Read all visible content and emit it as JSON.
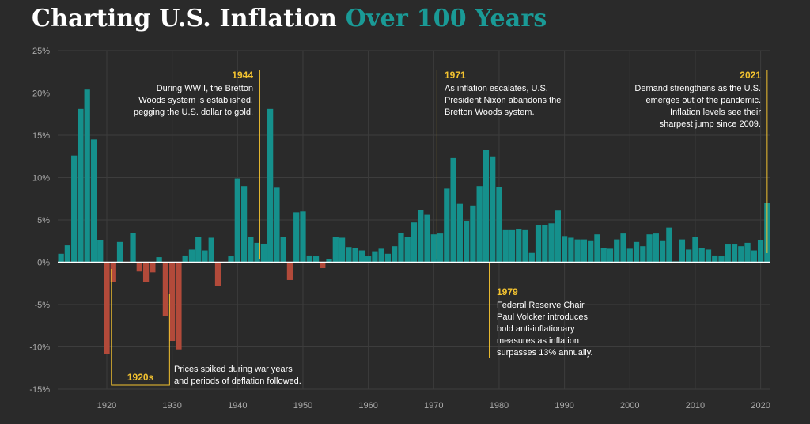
{
  "title": {
    "main": "Charting U.S. Inflation",
    "accent": "Over 100 Years"
  },
  "colors": {
    "positive": "#15908c",
    "negative": "#b24a3a",
    "annotation": "#f2c230",
    "background": "#2a2a2a",
    "grid": "#3d3d3d",
    "title_accent": "#1a9a96"
  },
  "chart_data": {
    "type": "bar",
    "title": "Charting U.S. Inflation Over 100 Years",
    "xlabel": "",
    "ylabel": "",
    "ylim": [
      -15,
      25
    ],
    "xlim": [
      1913,
      2021
    ],
    "grid": true,
    "y_ticks": [
      "25%",
      "20%",
      "15%",
      "10%",
      "5%",
      "0%",
      "-5%",
      "-10%",
      "-15%"
    ],
    "x_ticks": [
      "1920",
      "1930",
      "1940",
      "1950",
      "1960",
      "1970",
      "1980",
      "1990",
      "2000",
      "2010",
      "2020"
    ],
    "x": [
      1913,
      1914,
      1915,
      1916,
      1917,
      1918,
      1919,
      1920,
      1921,
      1922,
      1923,
      1924,
      1925,
      1926,
      1927,
      1928,
      1929,
      1930,
      1931,
      1932,
      1933,
      1934,
      1935,
      1936,
      1937,
      1938,
      1939,
      1940,
      1941,
      1942,
      1943,
      1944,
      1945,
      1946,
      1947,
      1948,
      1949,
      1950,
      1951,
      1952,
      1953,
      1954,
      1955,
      1956,
      1957,
      1958,
      1959,
      1960,
      1961,
      1962,
      1963,
      1964,
      1965,
      1966,
      1967,
      1968,
      1969,
      1970,
      1971,
      1972,
      1973,
      1974,
      1975,
      1976,
      1977,
      1978,
      1979,
      1980,
      1981,
      1982,
      1983,
      1984,
      1985,
      1986,
      1987,
      1988,
      1989,
      1990,
      1991,
      1992,
      1993,
      1994,
      1995,
      1996,
      1997,
      1998,
      1999,
      2000,
      2001,
      2002,
      2003,
      2004,
      2005,
      2006,
      2007,
      2008,
      2009,
      2010,
      2011,
      2012,
      2013,
      2014,
      2015,
      2016,
      2017,
      2018,
      2019,
      2020,
      2021
    ],
    "values": [
      1.0,
      2.0,
      12.6,
      18.1,
      20.4,
      14.5,
      2.6,
      -10.8,
      -2.3,
      2.4,
      0.0,
      3.5,
      -1.1,
      -2.3,
      -1.2,
      0.6,
      -6.4,
      -9.3,
      -10.3,
      0.8,
      1.5,
      3.0,
      1.4,
      2.9,
      -2.8,
      0.0,
      0.7,
      9.9,
      9.0,
      3.0,
      2.3,
      2.2,
      18.1,
      8.8,
      3.0,
      -2.1,
      5.9,
      6.0,
      0.8,
      0.7,
      -0.7,
      0.4,
      3.0,
      2.9,
      1.8,
      1.7,
      1.4,
      0.7,
      1.3,
      1.6,
      1.0,
      1.9,
      3.5,
      3.0,
      4.7,
      6.2,
      5.6,
      3.3,
      3.4,
      8.7,
      12.3,
      6.9,
      4.9,
      6.7,
      9.0,
      13.3,
      12.5,
      8.9,
      3.8,
      3.8,
      3.9,
      3.8,
      1.1,
      4.4,
      4.4,
      4.6,
      6.1,
      3.1,
      2.9,
      2.7,
      2.7,
      2.5,
      3.3,
      1.7,
      1.6,
      2.7,
      3.4,
      1.6,
      2.4,
      1.9,
      3.3,
      3.4,
      2.5,
      4.1,
      0.1,
      2.7,
      1.5,
      3.0,
      1.7,
      1.5,
      0.8,
      0.7,
      2.1,
      2.1,
      1.9,
      2.3,
      1.4,
      2.6,
      7.0
    ]
  },
  "annotations": [
    {
      "year": "1944",
      "lines": [
        "During WWII, the Bretton",
        "Woods system is established,",
        "pegging the U.S. dollar to gold."
      ]
    },
    {
      "year": "1971",
      "lines": [
        "As inflation escalates, U.S.",
        "President Nixon abandons the",
        "Bretton Woods system."
      ]
    },
    {
      "year": "2021",
      "lines": [
        "Demand strengthens as the U.S.",
        "emerges out of the pandemic.",
        "Inflation levels see their",
        "sharpest jump since 2009."
      ]
    },
    {
      "year": "1979",
      "lines": [
        "Federal Reserve Chair",
        "Paul Volcker introduces",
        "bold anti-inflationary",
        "measures as inflation",
        "surpasses 13% annually."
      ]
    },
    {
      "year": "1920s",
      "lines": [
        "Prices spiked during war years",
        "and periods of deflation followed."
      ]
    }
  ]
}
